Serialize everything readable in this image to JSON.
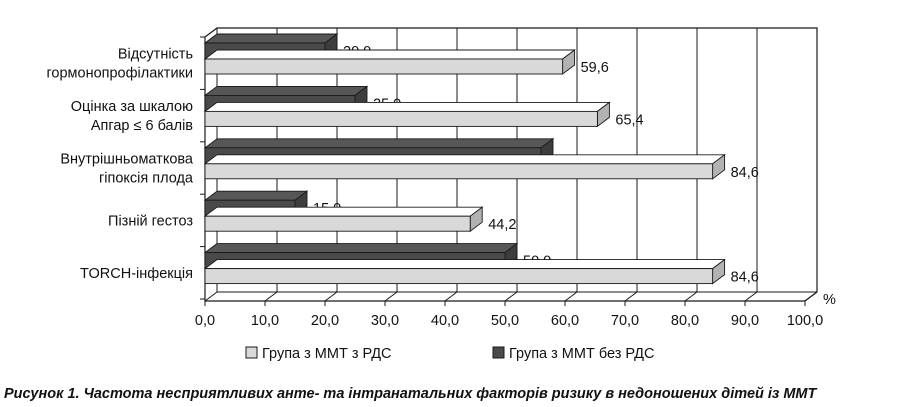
{
  "caption": "Рисунок 1. Частота несприятливих анте- та інтранатальних факторів ризику в недоношених дітей із ММТ",
  "colors": {
    "series_light": "#d9d9d9",
    "series_dark": "#4a4a4a",
    "frame": "#1a1a1a"
  },
  "chart_data": {
    "type": "bar",
    "orientation": "horizontal",
    "style": "3d",
    "categories": [
      [
        "Відсутність",
        "гормонопрофілактики"
      ],
      [
        "Оцінка за шкалою",
        "Апгар ≤ 6 балів"
      ],
      [
        "Внутрішньоматкова",
        "гіпоксія плода"
      ],
      [
        "Пізній гестоз"
      ],
      [
        "TORCH-інфекція"
      ]
    ],
    "series": [
      {
        "name": "Група з ММТ з РДС",
        "values": [
          59.6,
          65.4,
          84.6,
          44.2,
          84.6
        ],
        "labels": [
          "59,6",
          "65,4",
          "84,6",
          "44,2",
          "84,6"
        ]
      },
      {
        "name": "Група з ММТ без РДС",
        "values": [
          20.0,
          25.0,
          56.0,
          15.0,
          50.0
        ],
        "labels": [
          "20,0",
          "25,0",
          "",
          "15,0",
          "50,0"
        ]
      }
    ],
    "xlim": [
      0,
      100
    ],
    "xticks": [
      0,
      10,
      20,
      30,
      40,
      50,
      60,
      70,
      80,
      90,
      100
    ],
    "xtick_labels": [
      "0,0",
      "10,0",
      "20,0",
      "30,0",
      "40,0",
      "50,0",
      "60,0",
      "70,0",
      "80,0",
      "90,0",
      "100,0"
    ],
    "x_unit": "%",
    "grid": true,
    "legend_position": "bottom"
  }
}
